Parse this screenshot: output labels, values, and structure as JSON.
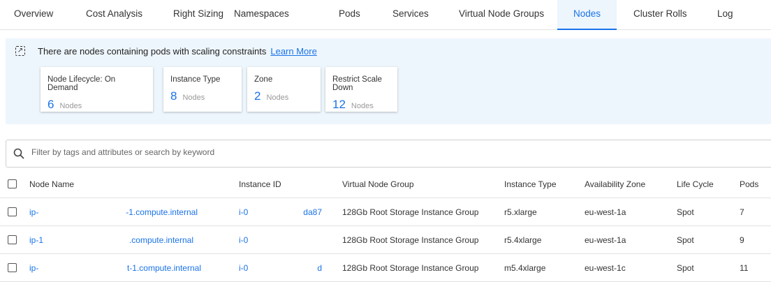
{
  "tabs": [
    "Overview",
    "Cost Analysis",
    "Right Sizing",
    "Namespaces",
    "Pods",
    "Services",
    "Virtual Node Groups",
    "Nodes",
    "Cluster Rolls",
    "Log"
  ],
  "active_tab": "Nodes",
  "banner": {
    "message": "There are nodes containing pods with scaling constraints",
    "link": "Learn More",
    "cards": [
      {
        "title": "Node Lifecycle: On Demand",
        "count": "6",
        "unit": "Nodes"
      },
      {
        "title": "Instance Type",
        "count": "8",
        "unit": "Nodes"
      },
      {
        "title": "Zone",
        "count": "2",
        "unit": "Nodes"
      },
      {
        "title": "Restrict Scale Down",
        "count": "12",
        "unit": "Nodes"
      }
    ]
  },
  "search": {
    "placeholder": "Filter by tags and attributes or search by keyword"
  },
  "table": {
    "headers": [
      "Node Name",
      "Instance ID",
      "Virtual Node Group",
      "Instance Type",
      "Availability Zone",
      "Life Cycle",
      "Pods"
    ],
    "rows": [
      {
        "name_a": "ip-",
        "name_b": "-1.compute.internal",
        "id_a": "i-0",
        "id_b": "da87",
        "vng": "128Gb Root Storage Instance Group",
        "type": "r5.xlarge",
        "az": "eu-west-1a",
        "life": "Spot",
        "pods": "7"
      },
      {
        "name_a": "ip-1",
        "name_b": ".compute.internal",
        "id_a": "i-0",
        "id_b": "",
        "vng": "128Gb Root Storage Instance Group",
        "type": "r5.4xlarge",
        "az": "eu-west-1a",
        "life": "Spot",
        "pods": "9"
      },
      {
        "name_a": "ip-",
        "name_b": "t-1.compute.internal",
        "id_a": "i-0",
        "id_b": "d",
        "vng": "128Gb Root Storage Instance Group",
        "type": "m5.4xlarge",
        "az": "eu-west-1c",
        "life": "Spot",
        "pods": "11"
      }
    ]
  },
  "colors": {
    "accent": "#1a73e8",
    "banner_bg": "#eef6fd"
  }
}
